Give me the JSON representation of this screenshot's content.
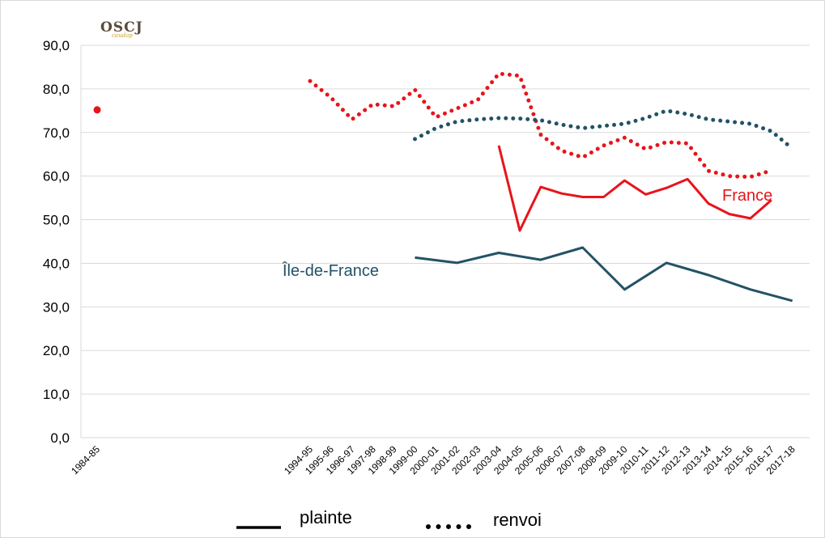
{
  "logo": {
    "main": "OSCJ",
    "sub": "caudap"
  },
  "chart_data": {
    "type": "line",
    "categories": [
      "1984-85",
      "1994-95",
      "1995-96",
      "1996-97",
      "1997-98",
      "1998-99",
      "1999-00",
      "2000-01",
      "2001-02",
      "2002-03",
      "2003-04",
      "2004-05",
      "2005-06",
      "2006-07",
      "2007-08",
      "2008-09",
      "2009-10",
      "2010-11",
      "2011-12",
      "2012-13",
      "2013-14",
      "2014-15",
      "2015-16",
      "2016-17",
      "2017-18"
    ],
    "y_ticks": [
      "0,0",
      "10,0",
      "20,0",
      "30,0",
      "40,0",
      "50,0",
      "60,0",
      "70,0",
      "80,0",
      "90,0"
    ],
    "ylim": [
      0,
      90
    ],
    "grid": true,
    "series": [
      {
        "name": "France",
        "kind": "plainte",
        "color": "#e8141b",
        "dash": "solid",
        "values": [
          null,
          null,
          null,
          null,
          null,
          null,
          null,
          null,
          null,
          null,
          67,
          47.5,
          57.5,
          56,
          55.2,
          55.2,
          59,
          55.8,
          57.3,
          59.3,
          53.7,
          51.3,
          50.3,
          54.5,
          null
        ]
      },
      {
        "name": "France",
        "kind": "renvoi",
        "color": "#e8141b",
        "dash": "dotted",
        "values": [
          75.2,
          81.8,
          78,
          73,
          76.5,
          76,
          79.8,
          73.5,
          75.5,
          77.5,
          83.5,
          83,
          69.5,
          65.8,
          64.3,
          67,
          68.8,
          66.2,
          67.8,
          67.5,
          61.2,
          60,
          59.8,
          61.3,
          null
        ]
      },
      {
        "name": "Île-de-France",
        "kind": "plainte",
        "color": "#235266",
        "dash": "solid",
        "values": [
          null,
          null,
          null,
          null,
          null,
          null,
          41.3,
          null,
          40.1,
          null,
          42.4,
          null,
          40.8,
          null,
          43.6,
          null,
          34,
          null,
          40.1,
          null,
          37.3,
          null,
          34,
          null,
          31.4
        ]
      },
      {
        "name": "Île-de-France",
        "kind": "renvoi",
        "color": "#235266",
        "dash": "dotted",
        "values": [
          null,
          null,
          null,
          null,
          null,
          null,
          68.5,
          71,
          72.5,
          73,
          73.3,
          73.2,
          72.8,
          71.8,
          71,
          71.5,
          72,
          73.3,
          75,
          74.2,
          73,
          72.5,
          72,
          70.3,
          66.3
        ]
      }
    ],
    "annotations": [
      {
        "text": "France",
        "color": "#e8141b"
      },
      {
        "text": "Île-de-France",
        "color": "#235266"
      }
    ],
    "legend": {
      "position": "bottom",
      "items": [
        {
          "label": "plainte",
          "style": "solid"
        },
        {
          "label": "renvoi",
          "style": "dotted"
        }
      ]
    }
  }
}
